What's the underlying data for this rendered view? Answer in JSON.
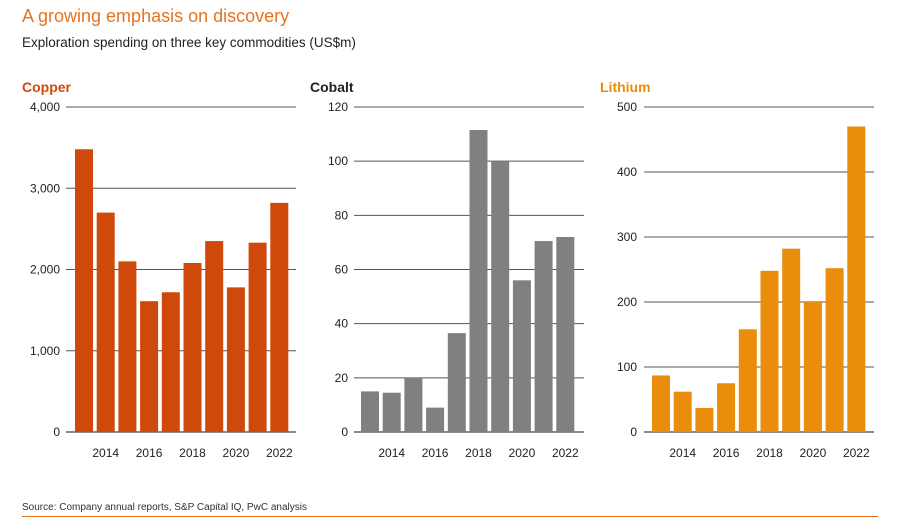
{
  "header": {
    "title": "A growing emphasis on discovery",
    "subtitle": "Exploration spending on three key commodities (US$m)"
  },
  "footer": {
    "source": "Source: Company annual reports, S&P Capital IQ, PwC analysis"
  },
  "colors": {
    "title": "#e8731f",
    "copper": "#cf4a0a",
    "cobalt": "#808080",
    "lithium": "#ea8c0c"
  },
  "chart_data": [
    {
      "type": "bar",
      "title": "Copper",
      "categories": [
        "2013",
        "2014",
        "2015",
        "2016",
        "2017",
        "2018",
        "2019",
        "2020",
        "2021",
        "2022"
      ],
      "values": [
        3480,
        2700,
        2100,
        1610,
        1720,
        2080,
        2350,
        1780,
        2330,
        2820
      ],
      "xtick_labels": [
        "2014",
        "2016",
        "2018",
        "2020",
        "2022"
      ],
      "yticks": [
        0,
        1000,
        2000,
        3000,
        4000
      ],
      "ytick_labels": [
        "0",
        "1,000",
        "2,000",
        "3,000",
        "4,000"
      ],
      "ylim": [
        0,
        4000
      ],
      "grid": true
    },
    {
      "type": "bar",
      "title": "Cobalt",
      "categories": [
        "2013",
        "2014",
        "2015",
        "2016",
        "2017",
        "2018",
        "2019",
        "2020",
        "2021",
        "2022"
      ],
      "values": [
        15,
        14.5,
        20,
        9,
        36.5,
        111.5,
        100,
        56,
        70.5,
        72
      ],
      "xtick_labels": [
        "2014",
        "2016",
        "2018",
        "2020",
        "2022"
      ],
      "yticks": [
        0,
        20,
        40,
        60,
        80,
        100,
        120
      ],
      "ytick_labels": [
        "0",
        "20",
        "40",
        "60",
        "80",
        "100",
        "120"
      ],
      "ylim": [
        0,
        120
      ],
      "grid": true
    },
    {
      "type": "bar",
      "title": "Lithium",
      "categories": [
        "2013",
        "2014",
        "2015",
        "2016",
        "2017",
        "2018",
        "2019",
        "2020",
        "2021",
        "2022"
      ],
      "values": [
        87,
        62,
        37,
        75,
        158,
        248,
        282,
        200,
        252,
        470
      ],
      "xtick_labels": [
        "2014",
        "2016",
        "2018",
        "2020",
        "2022"
      ],
      "yticks": [
        0,
        100,
        200,
        300,
        400,
        500
      ],
      "ytick_labels": [
        "0",
        "100",
        "200",
        "300",
        "400",
        "500"
      ],
      "ylim": [
        0,
        500
      ],
      "grid": true
    }
  ]
}
